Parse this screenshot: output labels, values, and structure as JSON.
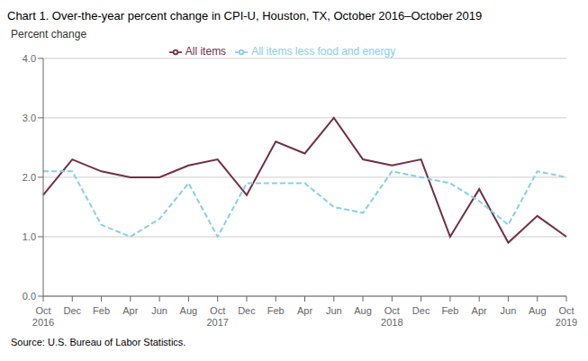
{
  "chart_data": {
    "type": "line",
    "title": "Chart 1. Over-the-year percent change in CPI-U, Houston,  TX, October 2016–October  2019",
    "y_label": "Percent change",
    "annotations": [
      "Source: U.S. Bureau of Labor Statistics."
    ],
    "categories": [
      "Oct\n2016",
      "Dec",
      "Feb",
      "Apr",
      "Jun",
      "Aug",
      "Oct\n2017",
      "Dec",
      "Feb",
      "Apr",
      "Jun",
      "Aug",
      "Oct\n2018",
      "Dec",
      "Feb",
      "Apr",
      "Jun",
      "Aug",
      "Oct\n2019"
    ],
    "series": [
      {
        "name": "All items",
        "color": "#722F45",
        "line_style": "solid",
        "values": [
          1.7,
          2.3,
          2.1,
          2.0,
          2.0,
          2.2,
          2.3,
          1.7,
          2.6,
          2.4,
          3.0,
          2.3,
          2.2,
          2.3,
          1.0,
          1.8,
          0.9,
          1.35,
          1.0
        ]
      },
      {
        "name": "All items less food and energy",
        "color": "#87CEEB",
        "line_style": "dashed",
        "values": [
          2.1,
          2.1,
          1.2,
          1.0,
          1.3,
          1.9,
          1.0,
          1.9,
          1.9,
          1.9,
          1.5,
          1.4,
          2.1,
          2.0,
          1.9,
          1.6,
          1.2,
          2.1,
          2.0
        ]
      }
    ],
    "ylim": [
      0.0,
      4.0
    ],
    "yticks": [
      {
        "value": 0.0,
        "label": "0.0"
      },
      {
        "value": 1.0,
        "label": "1.0"
      },
      {
        "value": 2.0,
        "label": "2.0"
      },
      {
        "value": 3.0,
        "label": "3.0"
      },
      {
        "value": 4.0,
        "label": "4.0"
      }
    ],
    "grid": true,
    "legend": "top"
  }
}
